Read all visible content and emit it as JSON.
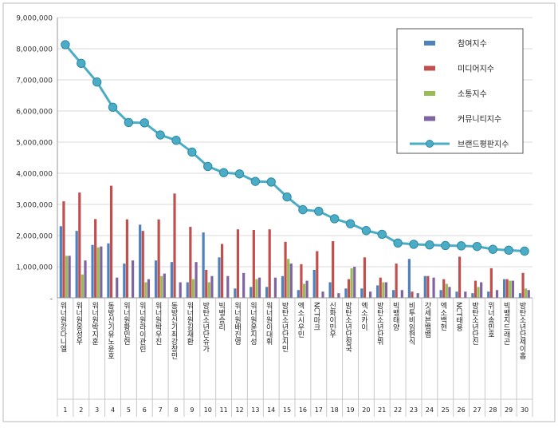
{
  "chart_data": {
    "type": "bar",
    "combo_line_series": "브랜드평판지수",
    "ylim": [
      0,
      9000000
    ],
    "y_ticks": [
      "-",
      "1,000,000",
      "2,000,000",
      "3,000,000",
      "4,000,000",
      "5,000,000",
      "6,000,000",
      "7,000,000",
      "8,000,000",
      "9,000,000"
    ],
    "grid": true,
    "legend_position": "top-right",
    "categories": [
      "워너원강다니엘",
      "워너원옹성우",
      "워너원박지훈",
      "동방신기유노윤호",
      "워너원황민현",
      "워너원라이관린",
      "워너원박우진",
      "동방신기최강창민",
      "워너원김재환",
      "방탄소년단슈가",
      "빅뱅승리",
      "워너원배진영",
      "워너원윤지성",
      "워너원이대휘",
      "방탄소년단지민",
      "엑소시우민",
      "NCT마크",
      "신화이민우",
      "방탄소년단정국",
      "엑소카이",
      "방탄소년단뷔",
      "빅뱅태양",
      "비투비임현식",
      "갓세븐뱀뱀",
      "엑소백현",
      "NCT태용",
      "방탄소년단진",
      "위너송민호",
      "빅뱅지드래곤",
      "방탄소년단제이홉"
    ],
    "rank_labels": [
      "1",
      "2",
      "3",
      "4",
      "5",
      "6",
      "7",
      "8",
      "9",
      "10",
      "11",
      "12",
      "13",
      "14",
      "15",
      "16",
      "17",
      "18",
      "19",
      "20",
      "21",
      "22",
      "23",
      "24",
      "25",
      "26",
      "27",
      "28",
      "29",
      "30"
    ],
    "series": [
      {
        "name": "참여지수",
        "color": "#4F81BD",
        "values": [
          2300000,
          2150000,
          1700000,
          1750000,
          1100000,
          2350000,
          1200000,
          1150000,
          500000,
          2100000,
          1300000,
          300000,
          350000,
          350000,
          700000,
          250000,
          900000,
          500000,
          300000,
          300000,
          400000,
          250000,
          1250000,
          700000,
          250000,
          200000,
          150000,
          200000,
          600000,
          150000
        ]
      },
      {
        "name": "미디어지수",
        "color": "#C0504D",
        "values": [
          3100000,
          3380000,
          2530000,
          3600000,
          2520000,
          2150000,
          2520000,
          3350000,
          2280000,
          900000,
          1730000,
          2200000,
          2180000,
          2200000,
          1800000,
          1080000,
          1500000,
          1820000,
          600000,
          1300000,
          650000,
          1100000,
          200000,
          700000,
          600000,
          1320000,
          550000,
          950000,
          600000,
          800000
        ]
      },
      {
        "name": "소통지수",
        "color": "#9BBB59",
        "values": [
          1350000,
          750000,
          1620000,
          0,
          0,
          500000,
          700000,
          0,
          600000,
          500000,
          0,
          0,
          600000,
          0,
          1250000,
          450000,
          0,
          0,
          950000,
          0,
          500000,
          0,
          0,
          0,
          450000,
          0,
          350000,
          0,
          550000,
          300000
        ]
      },
      {
        "name": "커뮤니티지수",
        "color": "#8064A2",
        "values": [
          1350000,
          1200000,
          1650000,
          650000,
          1200000,
          600000,
          780000,
          500000,
          1150000,
          700000,
          700000,
          800000,
          650000,
          650000,
          1100000,
          550000,
          200000,
          150000,
          1000000,
          200000,
          500000,
          250000,
          150000,
          650000,
          350000,
          200000,
          500000,
          250000,
          550000,
          250000
        ]
      }
    ],
    "line": {
      "name": "브랜드평판지수",
      "color": "#4BACC6",
      "values": [
        8130000,
        7530000,
        6930000,
        6120000,
        5630000,
        5620000,
        5230000,
        5060000,
        4680000,
        4220000,
        4020000,
        3980000,
        3740000,
        3720000,
        3240000,
        2830000,
        2780000,
        2540000,
        2380000,
        2160000,
        2040000,
        1760000,
        1720000,
        1700000,
        1680000,
        1670000,
        1650000,
        1560000,
        1530000,
        1500000
      ]
    }
  }
}
